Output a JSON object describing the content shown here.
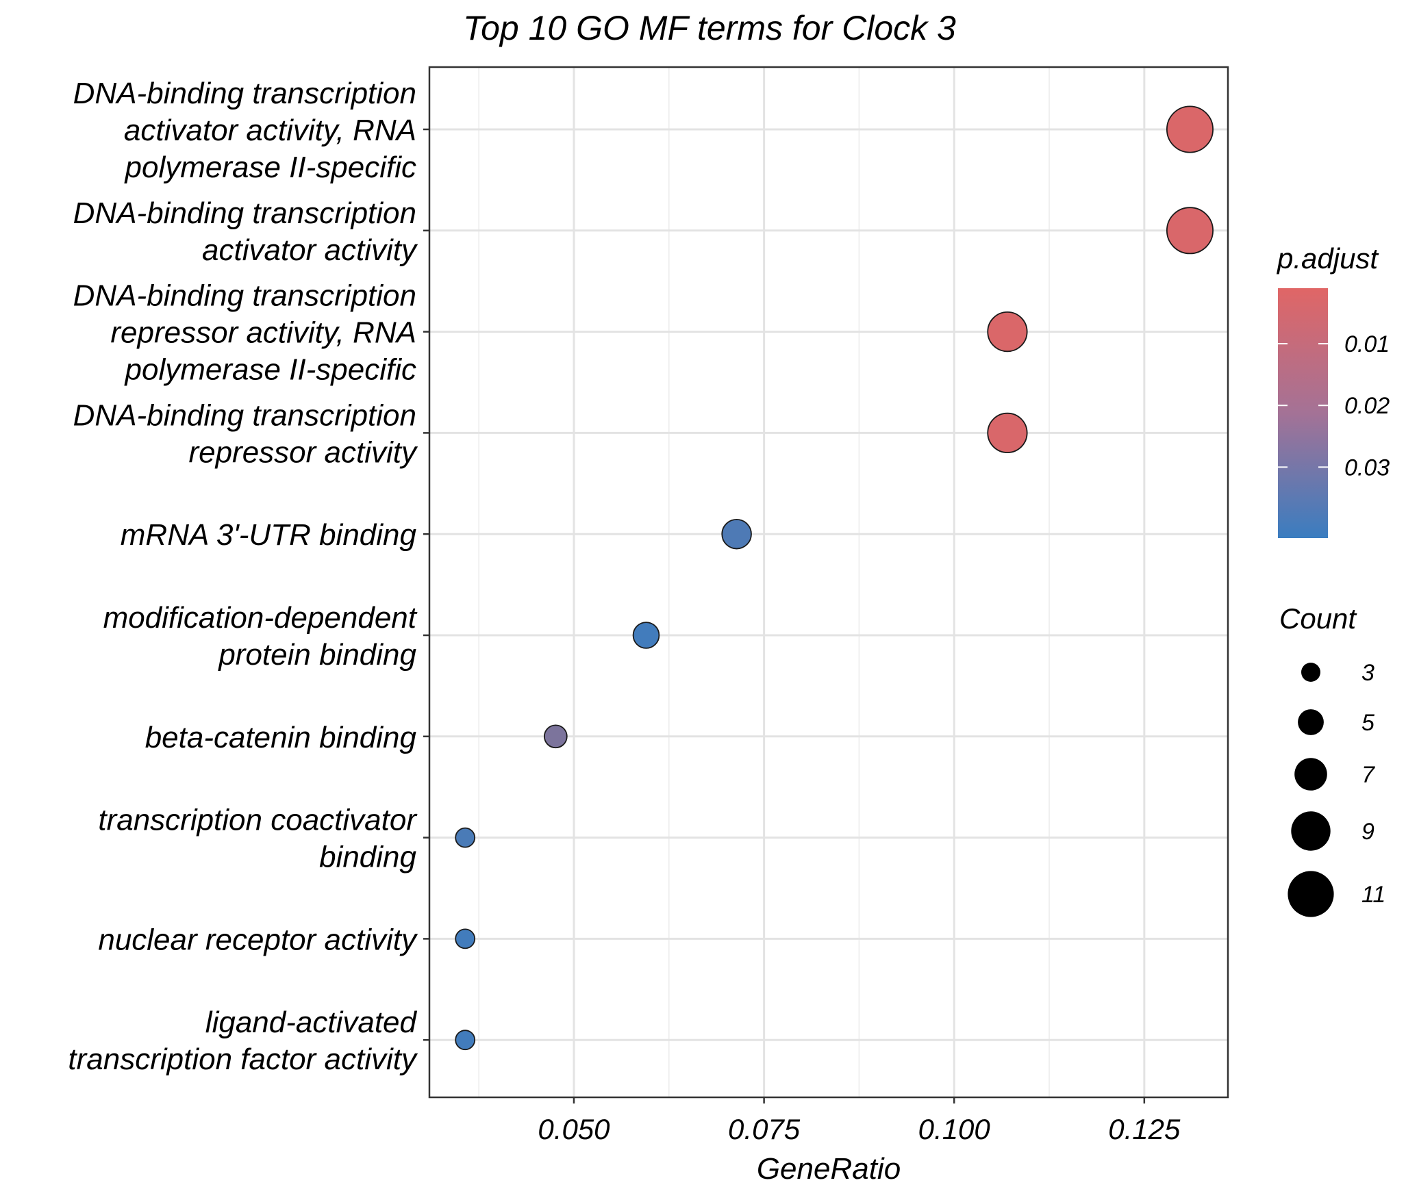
{
  "chart_data": {
    "type": "scatter",
    "title": "Top 10 GO MF terms for Clock 3",
    "xlabel": "GeneRatio",
    "ylabel": "",
    "xlim": [
      0.031,
      0.136
    ],
    "xticks": [
      0.05,
      0.075,
      0.1,
      0.125
    ],
    "xtick_labels": [
      "0.050",
      "0.075",
      "0.100",
      "0.125"
    ],
    "grid": true,
    "points": [
      {
        "term_lines": [
          "DNA-binding transcription",
          "activator activity, RNA",
          "polymerase II-specific"
        ],
        "gene_ratio": 0.131,
        "count": 11,
        "p_adjust": 0.0025
      },
      {
        "term_lines": [
          "DNA-binding transcription",
          "activator activity"
        ],
        "gene_ratio": 0.131,
        "count": 11,
        "p_adjust": 0.0026
      },
      {
        "term_lines": [
          "DNA-binding transcription",
          "repressor activity, RNA",
          "polymerase II-specific"
        ],
        "gene_ratio": 0.107,
        "count": 9,
        "p_adjust": 0.0025
      },
      {
        "term_lines": [
          "DNA-binding transcription",
          "repressor activity"
        ],
        "gene_ratio": 0.107,
        "count": 9,
        "p_adjust": 0.0026
      },
      {
        "term_lines": [
          "mRNA 3'-UTR binding"
        ],
        "gene_ratio": 0.0714,
        "count": 6,
        "p_adjust": 0.0365
      },
      {
        "term_lines": [
          "modification-dependent",
          "protein binding"
        ],
        "gene_ratio": 0.0595,
        "count": 5,
        "p_adjust": 0.0395
      },
      {
        "term_lines": [
          "beta-catenin binding"
        ],
        "gene_ratio": 0.0476,
        "count": 4,
        "p_adjust": 0.0255
      },
      {
        "term_lines": [
          "transcription coactivator",
          "binding"
        ],
        "gene_ratio": 0.0357,
        "count": 3,
        "p_adjust": 0.0375
      },
      {
        "term_lines": [
          "nuclear receptor activity"
        ],
        "gene_ratio": 0.0357,
        "count": 3,
        "p_adjust": 0.0395
      },
      {
        "term_lines": [
          "ligand-activated",
          "transcription factor activity"
        ],
        "gene_ratio": 0.0357,
        "count": 3,
        "p_adjust": 0.0395
      }
    ],
    "color_legend": {
      "title": "p.adjust",
      "low_color": "#E06666",
      "high_color": "#3A7DC0",
      "range": [
        0.001,
        0.0415
      ],
      "ticks": [
        0.01,
        0.02,
        0.03
      ],
      "tick_labels": [
        "0.01",
        "0.02",
        "0.03"
      ]
    },
    "size_legend": {
      "title": "Count",
      "values": [
        3,
        5,
        7,
        9,
        11
      ],
      "labels": [
        "3",
        "5",
        "7",
        "9",
        "11"
      ]
    }
  }
}
